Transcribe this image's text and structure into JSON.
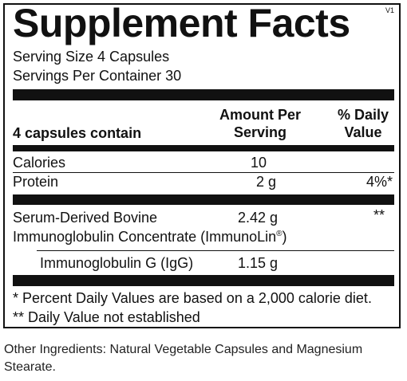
{
  "facts": {
    "title": "Supplement Facts",
    "version": "V1",
    "serving_size": "Serving Size 4 Capsules",
    "servings_per_container": "Servings Per Container 30",
    "header": {
      "contain": "4 capsules contain",
      "amount_line1": "Amount Per",
      "amount_line2": "Serving",
      "dv_line1": "% Daily",
      "dv_line2": "Value"
    },
    "rows": [
      {
        "name": "Calories",
        "amount": "10",
        "dv": ""
      },
      {
        "name": "Protein",
        "amount": "2 g",
        "dv": "4%*"
      }
    ],
    "ingredient": {
      "line1": "Serum-Derived Bovine",
      "line2_text": "Immunoglobulin Concentrate (ImmunoLin",
      "line2_symbol": "®",
      "line2_end": ")",
      "amount": "2.42 g",
      "dv": "**"
    },
    "sub_ingredient": {
      "name": "Immunoglobulin G (IgG)",
      "amount": "1.15 g"
    },
    "footnotes": {
      "note1": "* Percent Daily Values are based on a 2,000 calorie diet.",
      "note2": "** Daily Value not established"
    }
  },
  "other_ingredients": "Other Ingredients: Natural Vegetable Capsules and Magnesium Stearate."
}
